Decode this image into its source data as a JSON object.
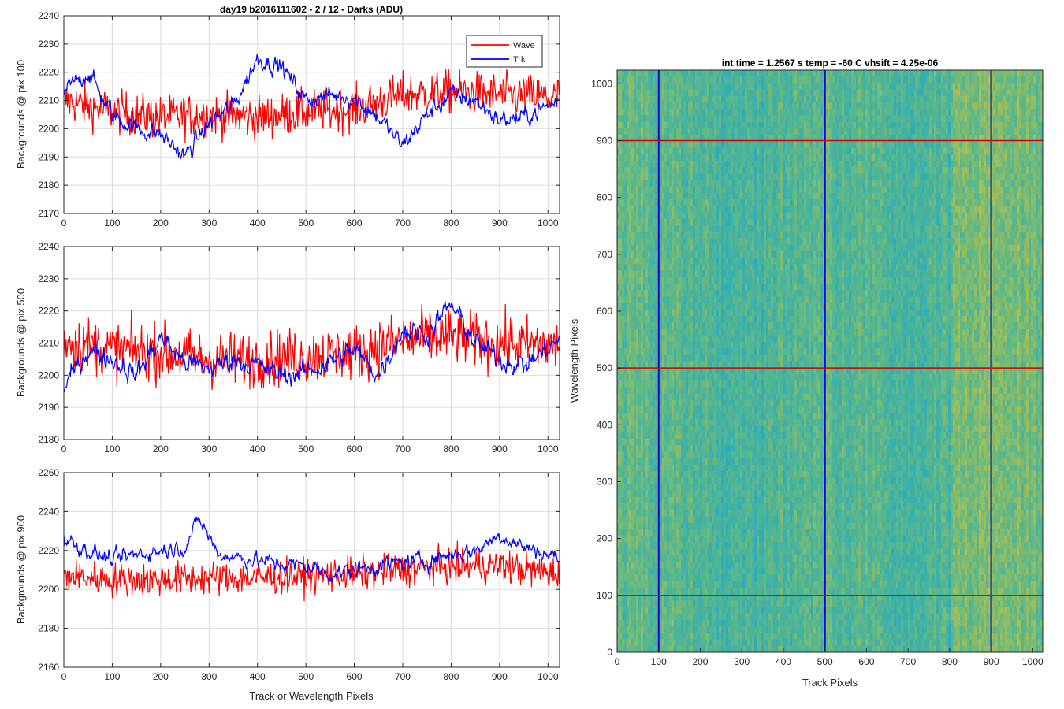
{
  "figure": {
    "title": "day19 b2016111602 - 2 / 12 - Darks (ADU)",
    "legend": {
      "placement": "top-right",
      "entries": [
        {
          "label": "Wave",
          "color": "#ff0000"
        },
        {
          "label": "Trk",
          "color": "#0000ff"
        }
      ]
    }
  },
  "chart_data": [
    {
      "type": "line",
      "title": "day19 b2016111602 - 2 / 12 - Darks (ADU)",
      "xlabel": "",
      "ylabel": "Backgrounds @ pix 100",
      "xlim": [
        0,
        1024
      ],
      "ylim": [
        2170,
        2240
      ],
      "xticks": [
        0,
        100,
        200,
        300,
        400,
        500,
        600,
        700,
        800,
        900,
        1000
      ],
      "yticks": [
        2170,
        2180,
        2190,
        2200,
        2210,
        2220,
        2230,
        2240
      ],
      "grid": true,
      "legend": "top-right",
      "series": [
        {
          "name": "Wave",
          "color": "#ff0000",
          "noise": 7,
          "x": [
            0,
            100,
            200,
            300,
            400,
            500,
            600,
            700,
            800,
            900,
            1024
          ],
          "y": [
            2210,
            2206,
            2204,
            2205,
            2204,
            2206,
            2207,
            2212,
            2213,
            2212,
            2211
          ]
        },
        {
          "name": "Trk",
          "color": "#0000ff",
          "noise": 4,
          "x": [
            0,
            50,
            100,
            150,
            200,
            250,
            300,
            350,
            400,
            450,
            500,
            550,
            600,
            650,
            700,
            750,
            800,
            850,
            900,
            950,
            1024
          ],
          "y": [
            2213,
            2220,
            2205,
            2200,
            2198,
            2190,
            2202,
            2208,
            2225,
            2222,
            2210,
            2212,
            2211,
            2204,
            2194,
            2205,
            2212,
            2210,
            2203,
            2204,
            2210
          ]
        }
      ]
    },
    {
      "type": "line",
      "title": "",
      "xlabel": "",
      "ylabel": "Backgrounds @ pix 500",
      "xlim": [
        0,
        1024
      ],
      "ylim": [
        2180,
        2240
      ],
      "xticks": [
        0,
        100,
        200,
        300,
        400,
        500,
        600,
        700,
        800,
        900,
        1000
      ],
      "yticks": [
        2180,
        2190,
        2200,
        2210,
        2220,
        2230,
        2240
      ],
      "grid": true,
      "series": [
        {
          "name": "Wave",
          "color": "#ff0000",
          "noise": 8,
          "x": [
            0,
            100,
            200,
            300,
            400,
            500,
            600,
            700,
            800,
            900,
            1024
          ],
          "y": [
            2211,
            2208,
            2207,
            2205,
            2205,
            2206,
            2207,
            2211,
            2212,
            2210,
            2209
          ]
        },
        {
          "name": "Trk",
          "color": "#0000ff",
          "noise": 4,
          "x": [
            0,
            50,
            100,
            150,
            200,
            250,
            300,
            350,
            400,
            450,
            500,
            550,
            600,
            650,
            700,
            750,
            800,
            850,
            900,
            950,
            1024
          ],
          "y": [
            2196,
            2208,
            2205,
            2200,
            2212,
            2204,
            2202,
            2205,
            2203,
            2200,
            2201,
            2204,
            2208,
            2200,
            2214,
            2213,
            2222,
            2210,
            2205,
            2203,
            2211
          ]
        }
      ]
    },
    {
      "type": "line",
      "title": "",
      "xlabel": "Track or Wavelength Pixels",
      "ylabel": "Backgrounds @ pix 900",
      "xlim": [
        0,
        1024
      ],
      "ylim": [
        2160,
        2260
      ],
      "xticks": [
        0,
        100,
        200,
        300,
        400,
        500,
        600,
        700,
        800,
        900,
        1000
      ],
      "yticks": [
        2160,
        2180,
        2200,
        2220,
        2240,
        2260
      ],
      "grid": true,
      "series": [
        {
          "name": "Wave",
          "color": "#ff0000",
          "noise": 8,
          "x": [
            0,
            100,
            200,
            300,
            400,
            500,
            600,
            700,
            800,
            900,
            1024
          ],
          "y": [
            2207,
            2205,
            2205,
            2206,
            2206,
            2207,
            2208,
            2210,
            2212,
            2212,
            2208
          ]
        },
        {
          "name": "Trk",
          "color": "#0000ff",
          "noise": 5,
          "x": [
            0,
            50,
            100,
            150,
            200,
            250,
            280,
            320,
            400,
            450,
            500,
            550,
            600,
            650,
            700,
            750,
            800,
            850,
            900,
            950,
            1024
          ],
          "y": [
            2226,
            2220,
            2215,
            2218,
            2220,
            2222,
            2236,
            2218,
            2215,
            2213,
            2212,
            2208,
            2210,
            2212,
            2214,
            2215,
            2218,
            2220,
            2228,
            2222,
            2216
          ]
        }
      ]
    },
    {
      "type": "heatmap",
      "title": "int time = 1.2567 s    temp = -60 C    vhsift = 4.25e-06",
      "xlabel": "Track Pixels",
      "ylabel": "Wavelength Pixels",
      "xlim": [
        0,
        1024
      ],
      "ylim": [
        0,
        1024
      ],
      "xticks": [
        0,
        100,
        200,
        300,
        400,
        500,
        600,
        700,
        800,
        900,
        1000
      ],
      "yticks": [
        0,
        100,
        200,
        300,
        400,
        500,
        600,
        700,
        800,
        900,
        1000
      ],
      "colormap": "parula",
      "colors": {
        "low": "#20a8c8",
        "mid": "#5cb88a",
        "high": "#c8c23c"
      },
      "vertical_markers": {
        "color": "#0000c8",
        "x": [
          100,
          500,
          900
        ]
      },
      "horizontal_markers": {
        "color": "#d00000",
        "y": [
          100,
          500,
          900
        ]
      }
    }
  ]
}
